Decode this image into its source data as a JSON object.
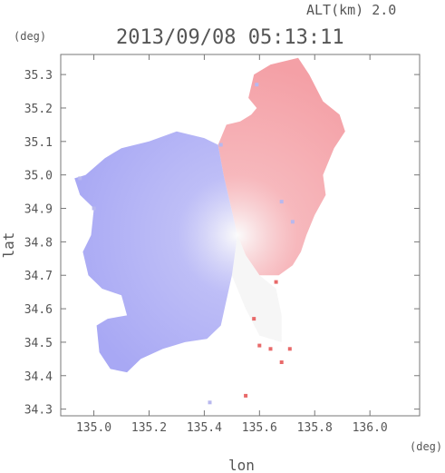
{
  "chart_data": {
    "type": "heatmap",
    "title": "2013/09/08 05:13:11",
    "altitude_label": "ALT(km) 2.0",
    "xlabel": "lon",
    "ylabel": "lat",
    "x_unit": "(deg)",
    "y_unit": "(deg)",
    "xlim": [
      134.88,
      136.18
    ],
    "ylim": [
      34.28,
      35.36
    ],
    "x_ticks": [
      "135.0",
      "135.2",
      "135.4",
      "135.6",
      "135.8",
      "136.0"
    ],
    "y_ticks": [
      "34.3",
      "34.4",
      "34.5",
      "34.6",
      "34.7",
      "34.8",
      "34.9",
      "35.0",
      "35.1",
      "35.2",
      "35.3"
    ],
    "radar_center": [
      135.52,
      34.82
    ],
    "colors": {
      "positive": "#f4a0a6",
      "negative": "#a8a8f4",
      "neutral": "#f6f6f6"
    },
    "regions": [
      {
        "name": "east-sector",
        "sign": "positive",
        "outline": [
          [
            135.52,
            34.82
          ],
          [
            135.47,
            35.0
          ],
          [
            135.45,
            35.09
          ],
          [
            135.48,
            35.15
          ],
          [
            135.53,
            35.16
          ],
          [
            135.57,
            35.18
          ],
          [
            135.59,
            35.2
          ],
          [
            135.56,
            35.23
          ],
          [
            135.58,
            35.3
          ],
          [
            135.64,
            35.33
          ],
          [
            135.74,
            35.35
          ],
          [
            135.78,
            35.3
          ],
          [
            135.83,
            35.22
          ],
          [
            135.89,
            35.18
          ],
          [
            135.91,
            35.13
          ],
          [
            135.87,
            35.08
          ],
          [
            135.83,
            35.0
          ],
          [
            135.84,
            34.94
          ],
          [
            135.8,
            34.88
          ],
          [
            135.77,
            34.82
          ],
          [
            135.75,
            34.77
          ],
          [
            135.72,
            34.73
          ],
          [
            135.67,
            34.7
          ],
          [
            135.6,
            34.7
          ],
          [
            135.55,
            34.76
          ]
        ]
      },
      {
        "name": "southeast-wedge",
        "sign": "neutral",
        "outline": [
          [
            135.52,
            34.82
          ],
          [
            135.55,
            34.76
          ],
          [
            135.6,
            34.7
          ],
          [
            135.66,
            34.66
          ],
          [
            135.68,
            34.58
          ],
          [
            135.68,
            34.5
          ],
          [
            135.6,
            34.52
          ],
          [
            135.55,
            34.6
          ],
          [
            135.5,
            34.7
          ]
        ]
      },
      {
        "name": "west-sector",
        "sign": "negative",
        "outline": [
          [
            135.52,
            34.82
          ],
          [
            135.47,
            35.0
          ],
          [
            135.45,
            35.09
          ],
          [
            135.4,
            35.11
          ],
          [
            135.3,
            35.13
          ],
          [
            135.2,
            35.1
          ],
          [
            135.1,
            35.08
          ],
          [
            135.04,
            35.05
          ],
          [
            134.97,
            35.0
          ],
          [
            134.93,
            34.99
          ],
          [
            134.95,
            34.94
          ],
          [
            135.0,
            34.9
          ],
          [
            134.99,
            34.82
          ],
          [
            134.96,
            34.77
          ],
          [
            134.98,
            34.7
          ],
          [
            135.03,
            34.66
          ],
          [
            135.1,
            34.64
          ],
          [
            135.12,
            34.58
          ],
          [
            135.05,
            34.57
          ],
          [
            135.01,
            34.55
          ],
          [
            135.02,
            34.47
          ],
          [
            135.06,
            34.42
          ],
          [
            135.12,
            34.41
          ],
          [
            135.17,
            34.45
          ],
          [
            135.25,
            34.48
          ],
          [
            135.33,
            34.5
          ],
          [
            135.41,
            34.51
          ],
          [
            135.46,
            34.55
          ],
          [
            135.5,
            34.7
          ]
        ]
      }
    ],
    "scatter_points": [
      [
        135.64,
        34.48
      ],
      [
        135.6,
        34.49
      ],
      [
        135.71,
        34.48
      ],
      [
        135.68,
        34.44
      ],
      [
        135.58,
        34.57
      ],
      [
        135.66,
        34.68
      ],
      [
        135.55,
        34.34
      ],
      [
        135.42,
        34.32
      ],
      [
        135.0,
        34.9
      ],
      [
        134.95,
        34.99
      ],
      [
        135.72,
        34.86
      ],
      [
        135.68,
        34.92
      ],
      [
        135.46,
        35.09
      ],
      [
        135.59,
        35.27
      ]
    ]
  }
}
